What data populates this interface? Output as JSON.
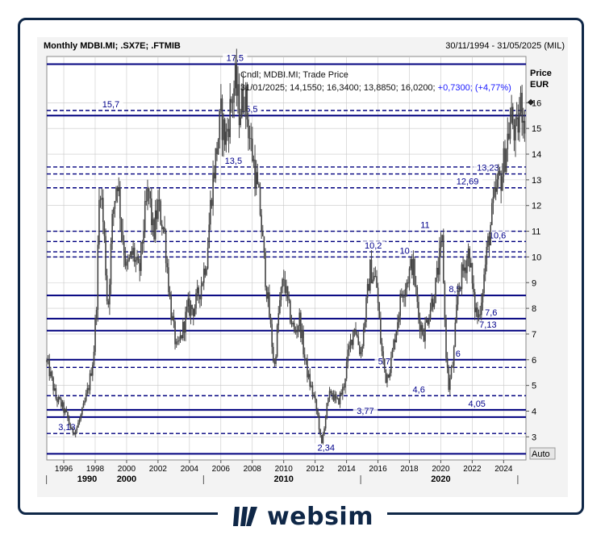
{
  "chart_data": {
    "type": "candlestick",
    "title": "Monthly MDBI.MI; .SX7E; .FTMIB",
    "date_range": "30/11/1994 - 31/05/2025 (MIL)",
    "ylabel": "Price",
    "yunit": "EUR",
    "ylim": [
      2.1,
      17.8
    ],
    "yscale": "linear",
    "yticks": [
      3,
      4,
      5,
      6,
      7,
      8,
      9,
      10,
      11,
      12,
      13,
      14,
      15,
      16
    ],
    "xlim": [
      1994.92,
      2025.42
    ],
    "xticks": [
      "1996",
      "1998",
      "2000",
      "2002",
      "2004",
      "2006",
      "2008",
      "2010",
      "2012",
      "2014",
      "2016",
      "2018",
      "2020",
      "2022",
      "2024"
    ],
    "decade_labels": [
      "1990",
      "2000",
      "2010",
      "2020"
    ],
    "legend_line1": "Cndl; MDBI.MI; Trade Price",
    "legend_line2": "31/01/2025; 14,1550; 16,3400; 13,8850; 16,0200;",
    "legend_change": "+0,7300; (+4,77%)",
    "auto_label": "Auto",
    "last_close": 16.02,
    "grid": true,
    "levels": [
      {
        "value": 17.5,
        "label": "17,5",
        "style": "solid",
        "label_year": 2006.9
      },
      {
        "value": 15.7,
        "label": "15,7",
        "style": "dashed",
        "label_year": 1999.0
      },
      {
        "value": 15.5,
        "label": "15,5",
        "style": "solid",
        "label_year": 2007.8
      },
      {
        "value": 13.5,
        "label": "13,5",
        "style": "dashed",
        "label_year": 2006.8
      },
      {
        "value": 13.23,
        "label": "13,23",
        "style": "dashed",
        "label_year": 2023.0
      },
      {
        "value": 12.69,
        "label": "12,69",
        "style": "dashed",
        "label_year": 2021.7
      },
      {
        "value": 11.0,
        "label": "11",
        "style": "dashed",
        "label_year": 2019.0
      },
      {
        "value": 10.6,
        "label": "10,6",
        "style": "dashed",
        "label_year": 2023.6
      },
      {
        "value": 10.2,
        "label": "10,2",
        "style": "dashed",
        "label_year": 2015.7
      },
      {
        "value": 10.0,
        "label": "10",
        "style": "dashed",
        "label_year": 2017.7
      },
      {
        "value": 8.5,
        "label": "8,5",
        "style": "solid",
        "label_year": 2020.9
      },
      {
        "value": 7.6,
        "label": "7,6",
        "style": "solid",
        "label_year": 2023.2
      },
      {
        "value": 7.13,
        "label": "7,13",
        "style": "solid",
        "label_year": 2023.0
      },
      {
        "value": 6.0,
        "label": "6",
        "style": "solid",
        "label_year": 2021.1
      },
      {
        "value": 5.7,
        "label": "5,7",
        "style": "dashed",
        "label_year": 2016.4
      },
      {
        "value": 4.6,
        "label": "4,6",
        "style": "dashed",
        "label_year": 2018.6
      },
      {
        "value": 4.05,
        "label": "4,05",
        "style": "solid",
        "label_year": 2022.3
      },
      {
        "value": 3.77,
        "label": "3,77",
        "style": "solid",
        "label_year": 2015.2
      },
      {
        "value": 3.13,
        "label": "3,13",
        "style": "dashed",
        "label_year": 1996.2
      },
      {
        "value": 2.34,
        "label": "2,34",
        "style": "solid",
        "label_year": 2012.7
      }
    ],
    "price_path": [
      [
        1994.92,
        5.9
      ],
      [
        1995.2,
        5.3
      ],
      [
        1995.5,
        4.5
      ],
      [
        1995.8,
        4.3
      ],
      [
        1996.2,
        3.8
      ],
      [
        1996.5,
        3.2
      ],
      [
        1996.8,
        3.3
      ],
      [
        1997.2,
        4.0
      ],
      [
        1997.6,
        5.0
      ],
      [
        1997.9,
        6.2
      ],
      [
        1998.1,
        8.5
      ],
      [
        1998.3,
        13.2
      ],
      [
        1998.6,
        10.5
      ],
      [
        1998.8,
        7.8
      ],
      [
        1999.1,
        11.5
      ],
      [
        1999.4,
        13.2
      ],
      [
        1999.7,
        11.0
      ],
      [
        2000.0,
        9.5
      ],
      [
        2000.4,
        10.2
      ],
      [
        2000.8,
        9.3
      ],
      [
        2001.1,
        11.3
      ],
      [
        2001.4,
        12.6
      ],
      [
        2001.7,
        10.8
      ],
      [
        2002.0,
        12.0
      ],
      [
        2002.4,
        11.0
      ],
      [
        2002.8,
        8.0
      ],
      [
        2003.2,
        6.3
      ],
      [
        2003.5,
        7.0
      ],
      [
        2003.9,
        8.0
      ],
      [
        2004.3,
        8.0
      ],
      [
        2004.7,
        8.8
      ],
      [
        2005.1,
        10.0
      ],
      [
        2005.4,
        12.5
      ],
      [
        2005.7,
        14.0
      ],
      [
        2006.0,
        15.5
      ],
      [
        2006.3,
        14.5
      ],
      [
        2006.6,
        15.8
      ],
      [
        2006.9,
        16.8
      ],
      [
        2007.2,
        15.6
      ],
      [
        2007.5,
        16.5
      ],
      [
        2007.8,
        14.8
      ],
      [
        2008.1,
        13.6
      ],
      [
        2008.5,
        11.8
      ],
      [
        2008.8,
        9.5
      ],
      [
        2009.2,
        7.0
      ],
      [
        2009.4,
        5.6
      ],
      [
        2009.7,
        8.0
      ],
      [
        2010.0,
        9.2
      ],
      [
        2010.3,
        8.0
      ],
      [
        2010.7,
        7.0
      ],
      [
        2011.0,
        7.6
      ],
      [
        2011.3,
        6.2
      ],
      [
        2011.6,
        5.2
      ],
      [
        2011.9,
        4.6
      ],
      [
        2012.2,
        3.7
      ],
      [
        2012.4,
        2.6
      ],
      [
        2012.7,
        4.0
      ],
      [
        2013.0,
        4.8
      ],
      [
        2013.4,
        4.3
      ],
      [
        2013.8,
        4.9
      ],
      [
        2014.1,
        6.2
      ],
      [
        2014.5,
        7.4
      ],
      [
        2014.9,
        6.2
      ],
      [
        2015.2,
        7.8
      ],
      [
        2015.5,
        9.5
      ],
      [
        2015.9,
        9.0
      ],
      [
        2016.2,
        6.5
      ],
      [
        2016.5,
        5.3
      ],
      [
        2016.8,
        5.8
      ],
      [
        2017.1,
        7.0
      ],
      [
        2017.5,
        8.6
      ],
      [
        2017.9,
        9.2
      ],
      [
        2018.2,
        9.8
      ],
      [
        2018.6,
        7.6
      ],
      [
        2018.9,
        7.0
      ],
      [
        2019.3,
        8.0
      ],
      [
        2019.6,
        8.6
      ],
      [
        2019.9,
        9.8
      ],
      [
        2020.1,
        10.6
      ],
      [
        2020.3,
        6.6
      ],
      [
        2020.5,
        4.9
      ],
      [
        2020.8,
        6.0
      ],
      [
        2021.1,
        8.8
      ],
      [
        2021.5,
        9.6
      ],
      [
        2021.8,
        10.3
      ],
      [
        2022.1,
        8.2
      ],
      [
        2022.4,
        7.6
      ],
      [
        2022.7,
        9.0
      ],
      [
        2023.0,
        10.5
      ],
      [
        2023.3,
        11.8
      ],
      [
        2023.6,
        12.8
      ],
      [
        2023.9,
        13.2
      ],
      [
        2024.2,
        14.5
      ],
      [
        2024.5,
        15.4
      ],
      [
        2024.8,
        14.6
      ],
      [
        2025.1,
        16.0
      ],
      [
        2025.3,
        15.5
      ]
    ]
  },
  "brand": {
    "name": "websim",
    "color": "#0f2747"
  },
  "colors": {
    "candle": "#444444",
    "level": "#00007f",
    "label": "#00008b",
    "grid": "#c8c8c8",
    "legend_change": "#1a1aff"
  }
}
